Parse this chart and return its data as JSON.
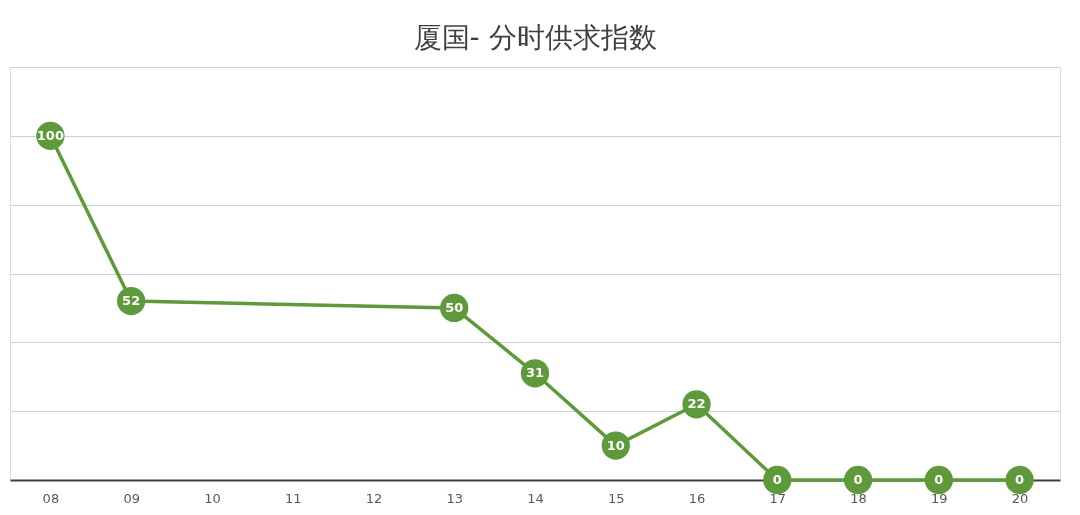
{
  "chart_data": {
    "type": "line",
    "title": "厦国- 分时供求指数",
    "categories": [
      "08",
      "09",
      "10",
      "11",
      "12",
      "13",
      "14",
      "15",
      "16",
      "17",
      "18",
      "19",
      "20"
    ],
    "values": [
      100,
      52,
      null,
      null,
      null,
      50,
      31,
      10,
      22,
      0,
      0,
      0,
      0
    ],
    "color": "#5e9a3b",
    "ylim": [
      0,
      120
    ],
    "yticks": [
      {
        "value": 0,
        "label": null
      },
      {
        "value": 20,
        "label": null
      },
      {
        "value": 40,
        "label": null
      },
      {
        "value": 60,
        "label": null
      },
      {
        "value": 80,
        "label": null
      },
      {
        "value": 100,
        "label": null
      },
      {
        "value": 120,
        "label": null
      }
    ],
    "tick_labels": "x",
    "grid": "y",
    "data_labels": true,
    "marker": "circle",
    "line_style": "solid"
  }
}
